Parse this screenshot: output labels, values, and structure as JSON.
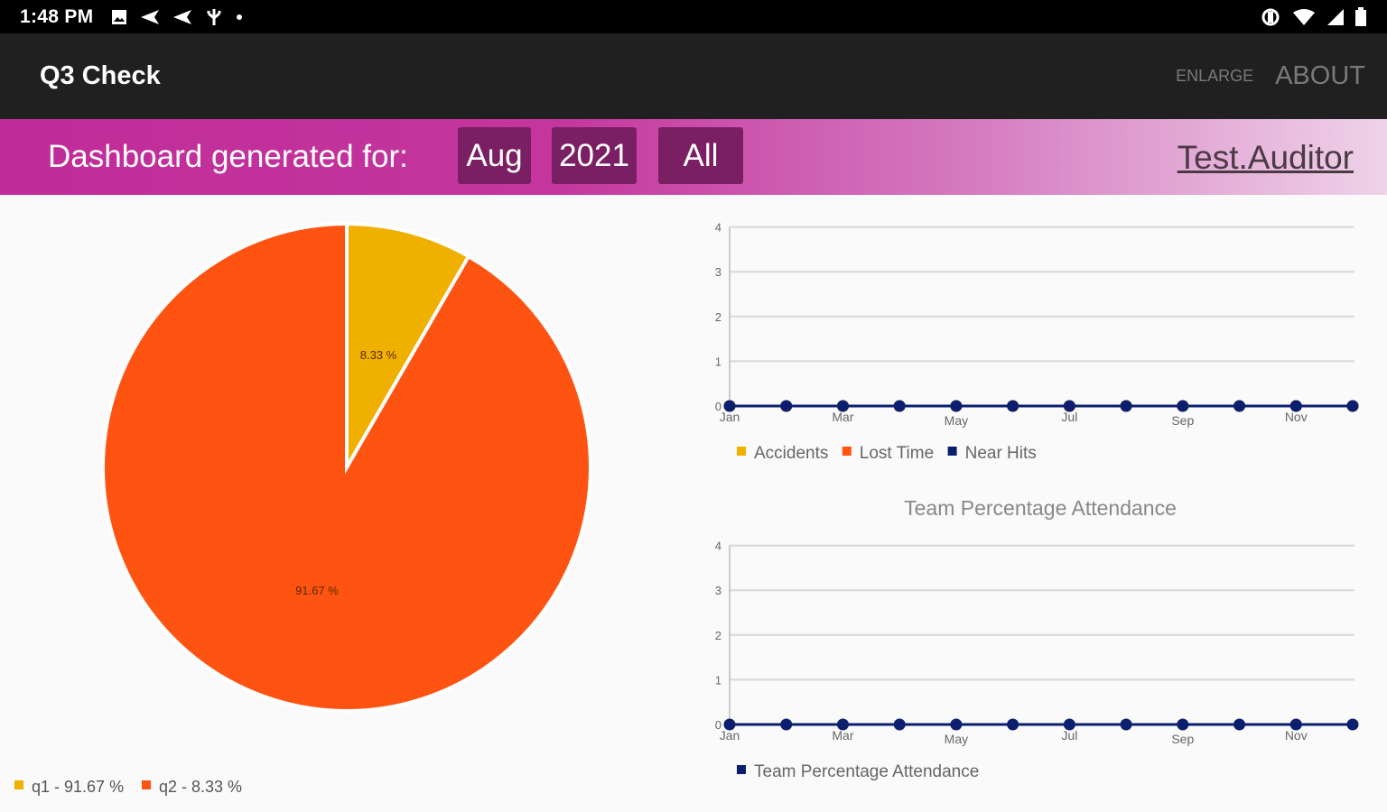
{
  "status_bar": {
    "time": "1:48 PM",
    "icons": [
      "image-icon",
      "send-icon",
      "send-icon",
      "usb-icon",
      "dot-icon"
    ],
    "right_icons": [
      "rotate-icon",
      "wifi-icon",
      "signal-icon",
      "battery-icon"
    ]
  },
  "app_bar": {
    "title": "Q3 Check",
    "enlarge_label": "ENLARGE",
    "about_label": "ABOUT"
  },
  "filter_bar": {
    "label": "Dashboard generated for:",
    "month": "Aug",
    "year": "2021",
    "scope": "All",
    "user": "Test.Auditor"
  },
  "chart_data": [
    {
      "type": "pie",
      "slices": [
        {
          "label": "q1",
          "value": 91.67,
          "color": "#ff5312",
          "slice_label": "91.67 %"
        },
        {
          "label": "q2",
          "value": 8.33,
          "color": "#f0b000",
          "slice_label": "8.33 %"
        }
      ],
      "legend": [
        {
          "text": "q1 - 91.67 %",
          "color": "#f0b000"
        },
        {
          "text": "q2 - 8.33 %",
          "color": "#ff5312"
        }
      ],
      "legend_placement": "bottom-left"
    },
    {
      "type": "line",
      "title": "",
      "x": [
        "Jan",
        "Feb",
        "Mar",
        "Apr",
        "May",
        "Jun",
        "Jul",
        "Aug",
        "Sep",
        "Oct",
        "Nov",
        "Dec"
      ],
      "x_tick_labels": [
        "Jan",
        "Mar",
        "May",
        "Jul",
        "Sep",
        "Nov"
      ],
      "y_tick_labels": [
        "0",
        "1",
        "2",
        "3",
        "4"
      ],
      "ylim": [
        0,
        4
      ],
      "series": [
        {
          "name": "Accidents",
          "color": "#f0b000",
          "values": [
            0,
            0,
            0,
            0,
            0,
            0,
            0,
            0,
            0,
            0,
            0,
            0
          ]
        },
        {
          "name": "Lost Time",
          "color": "#ff5312",
          "values": [
            0,
            0,
            0,
            0,
            0,
            0,
            0,
            0,
            0,
            0,
            0,
            0
          ]
        },
        {
          "name": "Near Hits",
          "color": "#0b1f6e",
          "values": [
            0,
            0,
            0,
            0,
            0,
            0,
            0,
            0,
            0,
            0,
            0,
            0
          ]
        }
      ],
      "grid": true,
      "legend_placement": "bottom-left"
    },
    {
      "type": "line",
      "title": "Team Percentage Attendance",
      "x": [
        "Jan",
        "Feb",
        "Mar",
        "Apr",
        "May",
        "Jun",
        "Jul",
        "Aug",
        "Sep",
        "Oct",
        "Nov",
        "Dec"
      ],
      "x_tick_labels": [
        "Jan",
        "Mar",
        "May",
        "Jul",
        "Sep",
        "Nov"
      ],
      "y_tick_labels": [
        "0",
        "1",
        "2",
        "3",
        "4"
      ],
      "ylim": [
        0,
        4
      ],
      "series": [
        {
          "name": "Team Percentage Attendance",
          "color": "#0b1f6e",
          "values": [
            0,
            0,
            0,
            0,
            0,
            0,
            0,
            0,
            0,
            0,
            0,
            0
          ]
        }
      ],
      "grid": true,
      "legend_placement": "bottom-left"
    }
  ]
}
